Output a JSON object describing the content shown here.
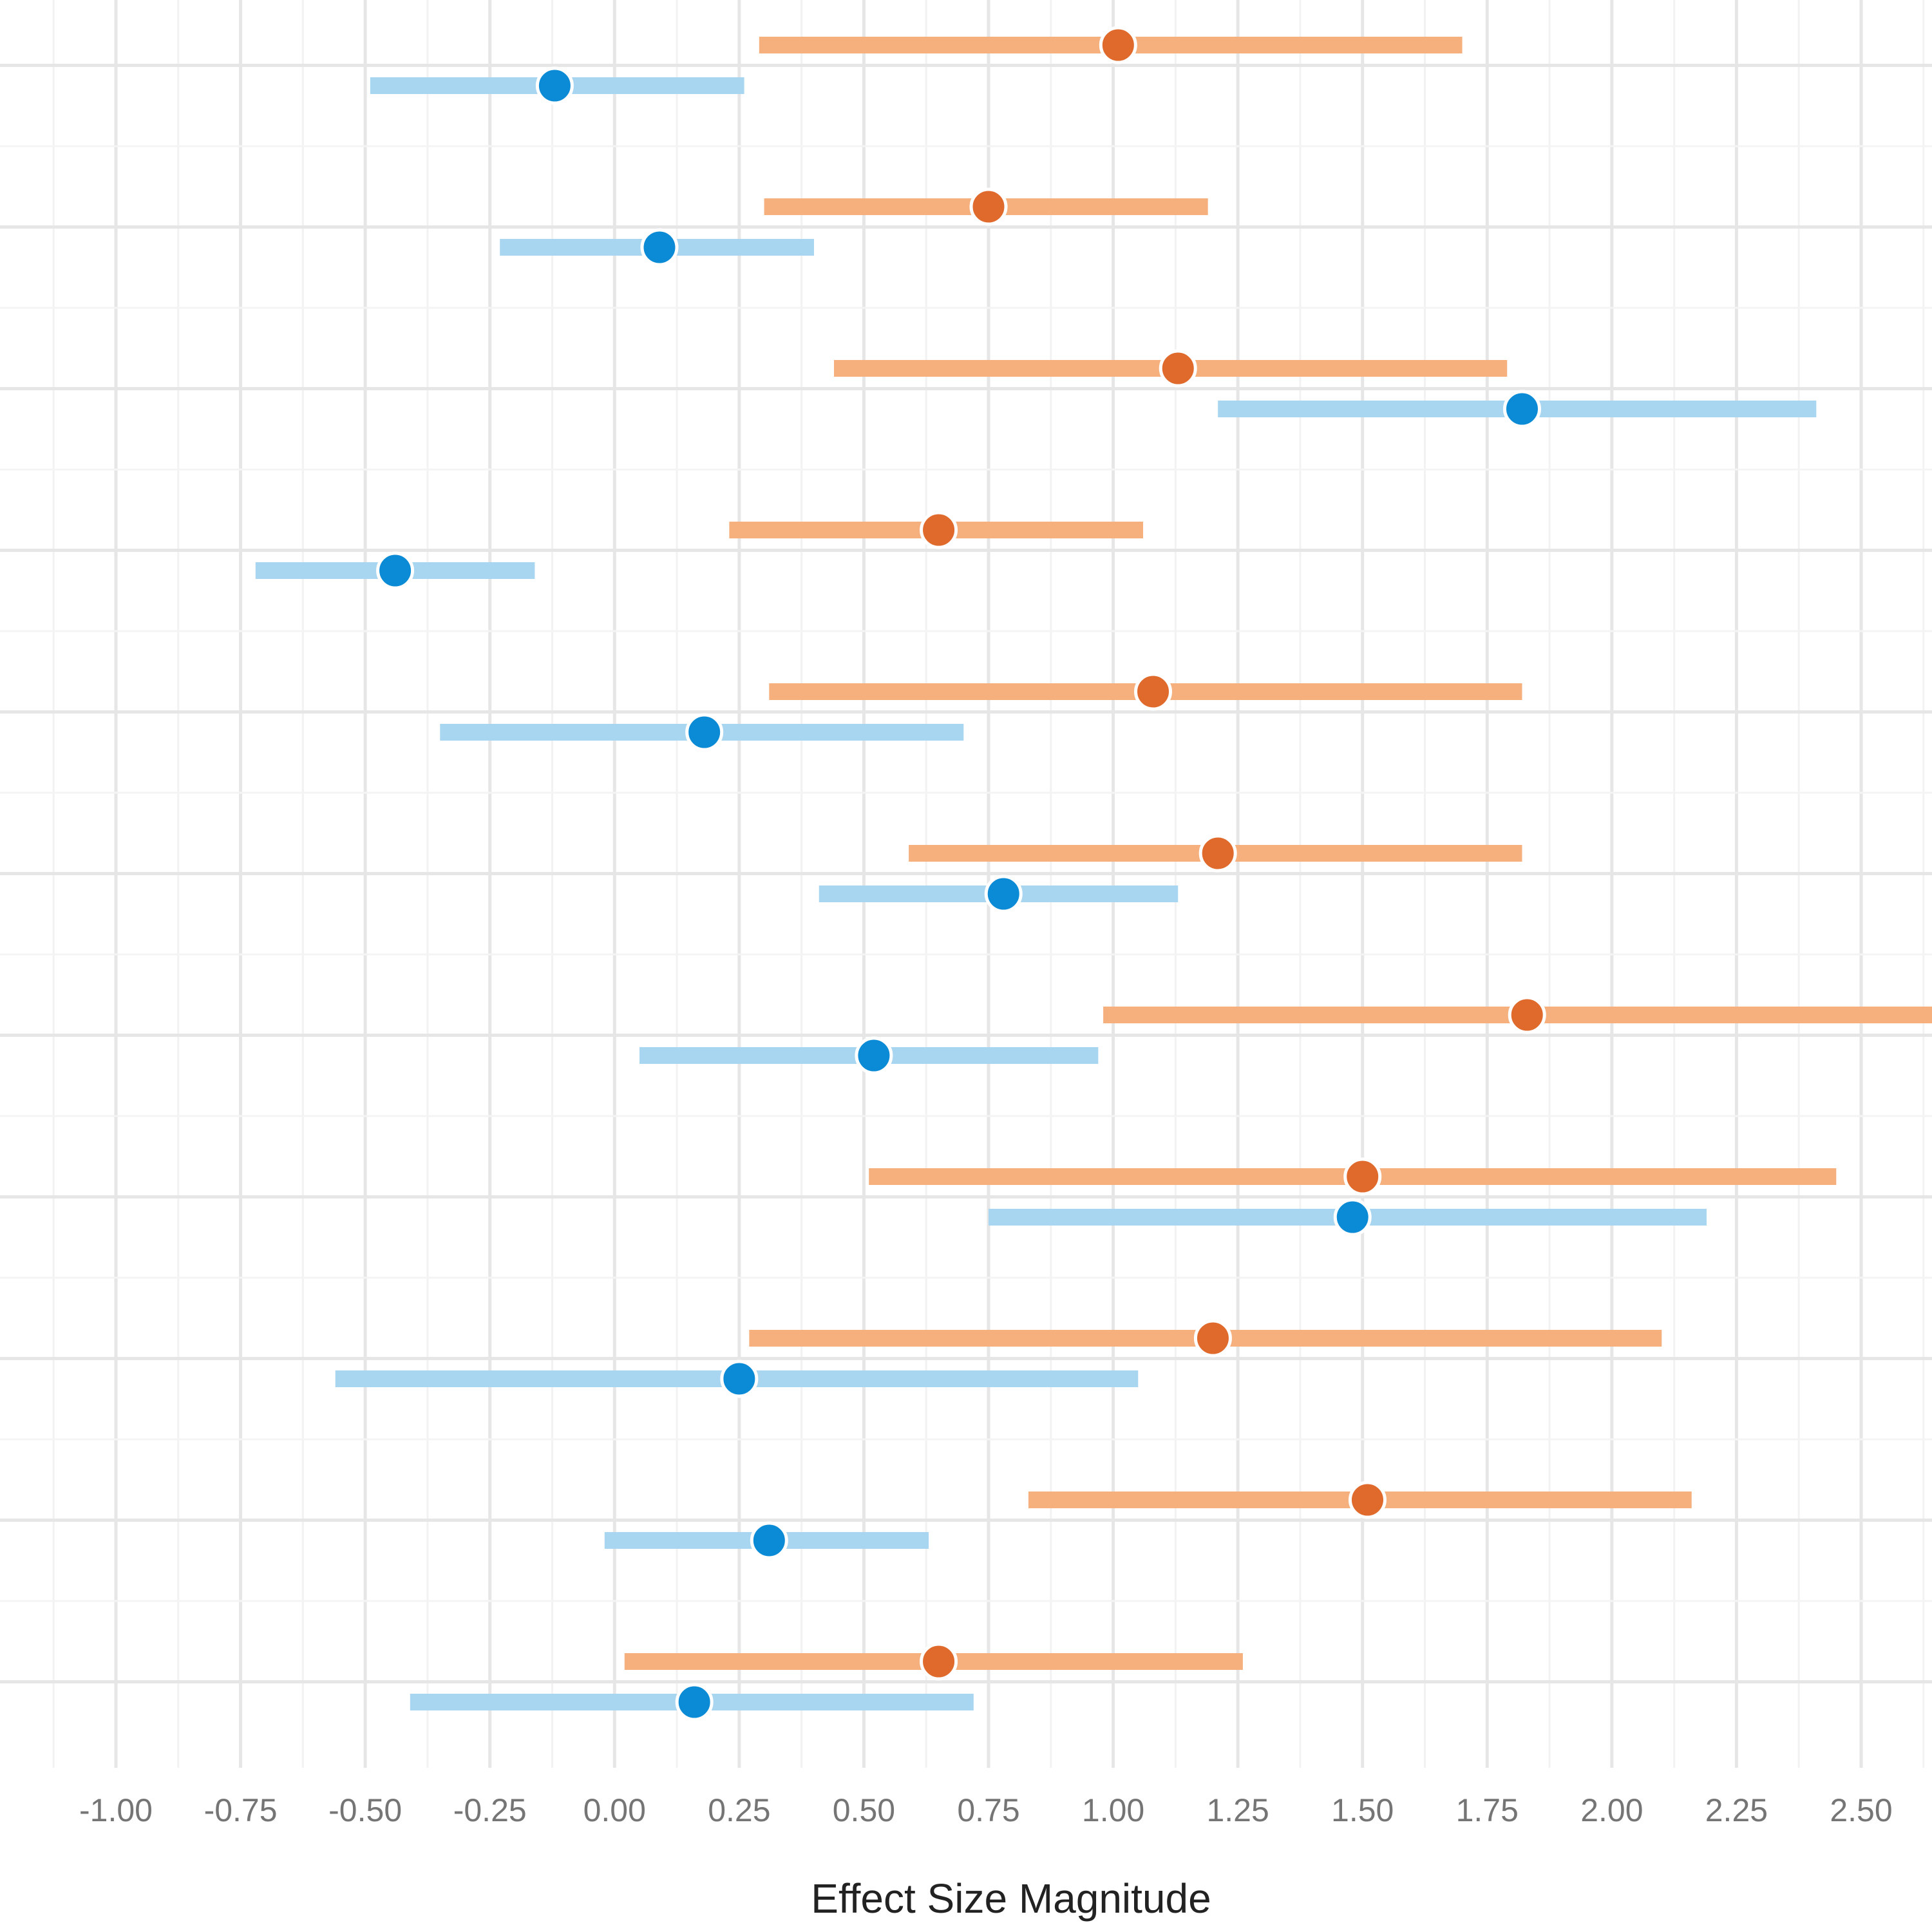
{
  "chart_data": {
    "type": "scatter",
    "subtype": "forest-plot",
    "xlabel": "Effect Size Magnitude",
    "xlim": [
      -1.25,
      2.65
    ],
    "x_ticks": [
      -1.0,
      -0.75,
      -0.5,
      -0.25,
      0.0,
      0.25,
      0.5,
      0.75,
      1.0,
      1.25,
      1.5,
      1.75,
      2.0,
      2.25,
      2.5
    ],
    "x_tick_labels": [
      "-1.00",
      "-0.75",
      "-0.50",
      "-0.25",
      "0.00",
      "0.25",
      "0.50",
      "0.75",
      "1.00",
      "1.25",
      "1.50",
      "1.75",
      "2.00",
      "2.25",
      "2.50"
    ],
    "grid": true,
    "legend": "none",
    "rows": 11,
    "series": [
      {
        "color_line": "#f5b07e",
        "color_point": "#e06a2c",
        "values": [
          {
            "row": 1,
            "estimate": 1.01,
            "low": 0.29,
            "high": 1.7
          },
          {
            "row": 2,
            "estimate": 0.75,
            "low": 0.3,
            "high": 1.19
          },
          {
            "row": 3,
            "estimate": 1.13,
            "low": 0.44,
            "high": 1.79
          },
          {
            "row": 4,
            "estimate": 0.65,
            "low": 0.23,
            "high": 1.06
          },
          {
            "row": 5,
            "estimate": 1.08,
            "low": 0.31,
            "high": 1.82
          },
          {
            "row": 6,
            "estimate": 1.21,
            "low": 0.59,
            "high": 1.82
          },
          {
            "row": 7,
            "estimate": 1.83,
            "low": 0.98,
            "high": 2.65
          },
          {
            "row": 8,
            "estimate": 1.5,
            "low": 0.51,
            "high": 2.45
          },
          {
            "row": 9,
            "estimate": 1.2,
            "low": 0.27,
            "high": 2.1
          },
          {
            "row": 10,
            "estimate": 1.51,
            "low": 0.83,
            "high": 2.16
          },
          {
            "row": 11,
            "estimate": 0.65,
            "low": 0.02,
            "high": 1.26
          }
        ]
      },
      {
        "color_line": "#a8d5ef",
        "color_point": "#0b8bd6",
        "values": [
          {
            "row": 1,
            "estimate": -0.12,
            "low": -0.49,
            "high": 0.26
          },
          {
            "row": 2,
            "estimate": 0.09,
            "low": -0.23,
            "high": 0.4
          },
          {
            "row": 3,
            "estimate": 1.82,
            "low": 1.21,
            "high": 2.41
          },
          {
            "row": 4,
            "estimate": -0.44,
            "low": -0.72,
            "high": -0.16
          },
          {
            "row": 5,
            "estimate": 0.18,
            "low": -0.35,
            "high": 0.7
          },
          {
            "row": 6,
            "estimate": 0.78,
            "low": 0.41,
            "high": 1.13
          },
          {
            "row": 7,
            "estimate": 0.52,
            "low": 0.05,
            "high": 0.97
          },
          {
            "row": 8,
            "estimate": 1.48,
            "low": 0.75,
            "high": 2.19
          },
          {
            "row": 9,
            "estimate": 0.25,
            "low": -0.56,
            "high": 1.05
          },
          {
            "row": 10,
            "estimate": 0.31,
            "low": -0.02,
            "high": 0.63
          },
          {
            "row": 11,
            "estimate": 0.16,
            "low": -0.41,
            "high": 0.72
          }
        ]
      }
    ]
  }
}
